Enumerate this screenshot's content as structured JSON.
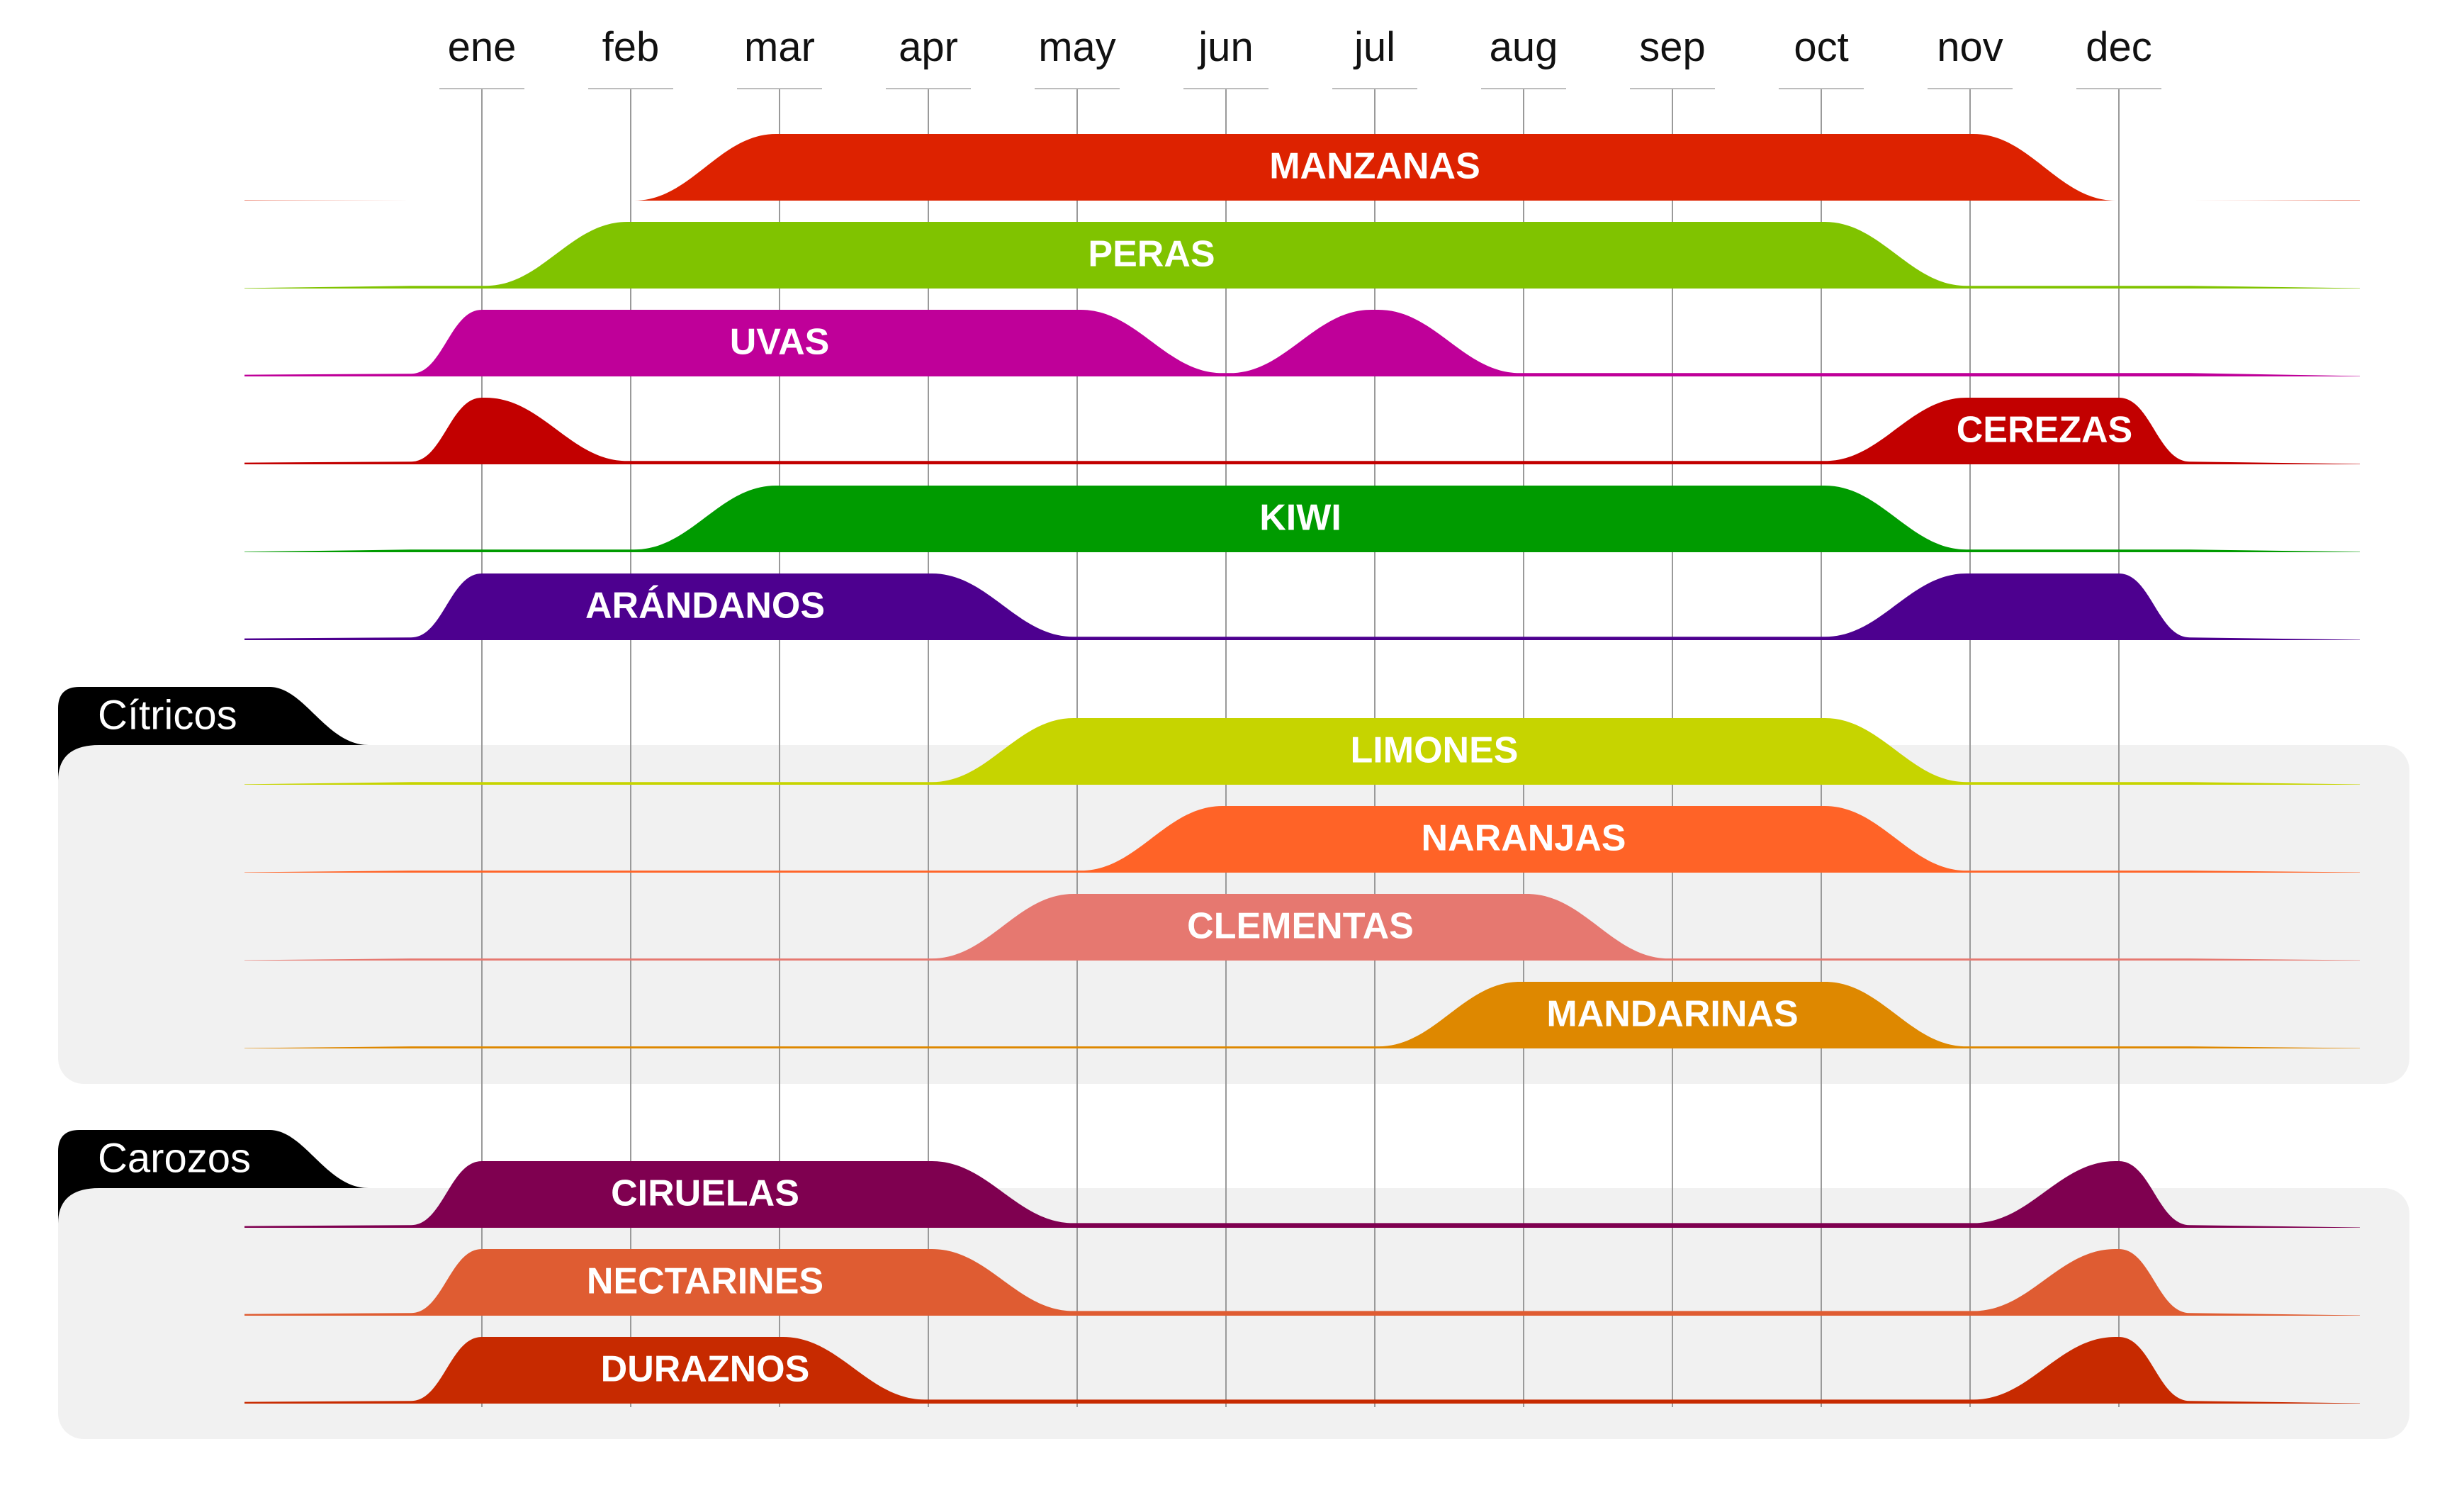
{
  "chart_data": {
    "type": "area",
    "title": "",
    "x": [
      "ene",
      "feb",
      "mar",
      "apr",
      "may",
      "jun",
      "jul",
      "aug",
      "sep",
      "oct",
      "nov",
      "dec"
    ],
    "groups": [
      {
        "name": "",
        "series": [
          0,
          1,
          2,
          3,
          4,
          5
        ]
      },
      {
        "name": "Cítricos",
        "series": [
          6,
          7,
          8,
          9
        ]
      },
      {
        "name": "Carozos",
        "series": [
          10,
          11,
          12
        ]
      }
    ],
    "series": [
      {
        "name": "MANZANAS",
        "color": "#dd2200",
        "label_at": 6.0,
        "values": [
          0,
          0,
          1,
          1,
          1,
          1,
          1,
          1,
          1,
          1,
          1,
          0
        ]
      },
      {
        "name": "PERAS",
        "color": "#80c300",
        "label_at": 4.5,
        "values": [
          0.04,
          1,
          1,
          1,
          1,
          1,
          1,
          1,
          1,
          1,
          0.04,
          0.04
        ]
      },
      {
        "name": "UVAS",
        "color": "#bf0099",
        "label_at": 2.0,
        "values": [
          1,
          1,
          1,
          1,
          1,
          0.05,
          1,
          0.05,
          0.05,
          0.05,
          0.05,
          0.05
        ]
      },
      {
        "name": "CEREZAS",
        "color": "#c20000",
        "label_at": 10.5,
        "values": [
          1,
          0.05,
          0.05,
          0.05,
          0.05,
          0.05,
          0.05,
          0.05,
          0.05,
          0.05,
          1,
          1
        ]
      },
      {
        "name": "KIWI",
        "color": "#009b00",
        "label_at": 5.5,
        "values": [
          0.04,
          0.04,
          1,
          1,
          1,
          1,
          1,
          1,
          1,
          1,
          0.04,
          0.04
        ]
      },
      {
        "name": "ARÁNDANOS",
        "color": "#4d008f",
        "label_at": 1.5,
        "values": [
          1,
          1,
          1,
          1,
          0.05,
          0.05,
          0.05,
          0.05,
          0.05,
          0.05,
          1,
          1
        ]
      },
      {
        "name": "LIMONES",
        "color": "#c6d400",
        "label_at": 6.4,
        "values": [
          0.04,
          0.04,
          0.04,
          0.04,
          1,
          1,
          1,
          1,
          1,
          1,
          0.04,
          0.04
        ]
      },
      {
        "name": "NARANJAS",
        "color": "#ff6327",
        "label_at": 7.0,
        "values": [
          0.03,
          0.03,
          0.03,
          0.03,
          0.03,
          1,
          1,
          1,
          1,
          1,
          0.03,
          0.03
        ]
      },
      {
        "name": "CLEMENTAS",
        "color": "#e67870",
        "label_at": 5.5,
        "values": [
          0.03,
          0.03,
          0.03,
          0.03,
          1,
          1,
          1,
          1,
          0.03,
          0.03,
          0.03,
          0.03
        ]
      },
      {
        "name": "MANDARINAS",
        "color": "#de8800",
        "label_at": 8.0,
        "values": [
          0.03,
          0.03,
          0.03,
          0.03,
          0.03,
          0.03,
          0.03,
          1,
          1,
          1,
          0.03,
          0.03
        ]
      },
      {
        "name": "CIRUELAS",
        "color": "#7f0050",
        "label_at": 1.5,
        "values": [
          1,
          1,
          1,
          1,
          0.07,
          0.07,
          0.07,
          0.07,
          0.07,
          0.07,
          0.07,
          1
        ]
      },
      {
        "name": "NECTARINES",
        "color": "#df5c32",
        "label_at": 1.5,
        "values": [
          1,
          1,
          1,
          1,
          0.07,
          0.07,
          0.07,
          0.07,
          0.07,
          0.07,
          0.07,
          1
        ]
      },
      {
        "name": "DURAZNOS",
        "color": "#c72a00",
        "label_at": 1.5,
        "values": [
          1,
          1,
          1,
          0.06,
          0.06,
          0.06,
          0.06,
          0.06,
          0.06,
          0.06,
          0.06,
          1
        ]
      }
    ]
  }
}
